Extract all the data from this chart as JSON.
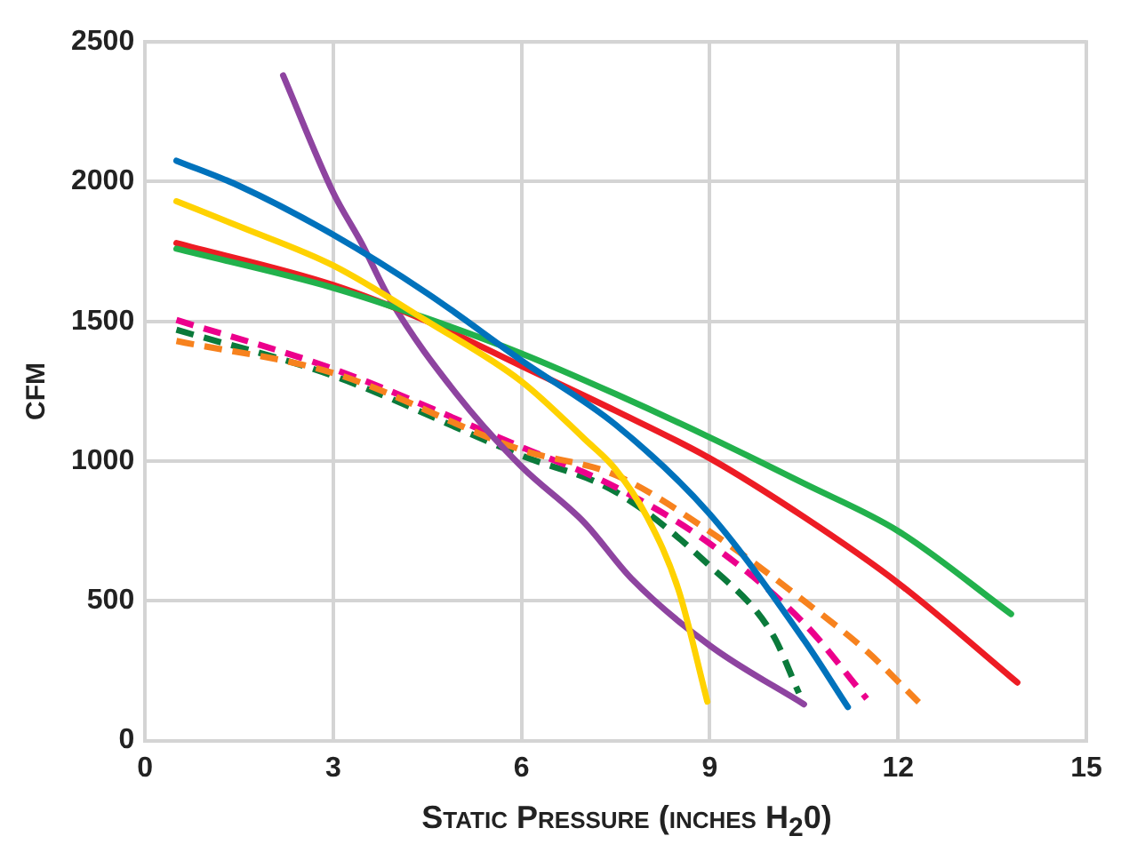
{
  "chart_data": {
    "type": "line",
    "xlabel": "Static Pressure (inches H$_{2}$0)",
    "ylabel": "CFM",
    "xlim": [
      0,
      15
    ],
    "xticks": [
      0,
      3,
      6,
      9,
      12,
      15
    ],
    "ylim": [
      0,
      2500
    ],
    "yticks": [
      0,
      500,
      1000,
      1500,
      2000,
      2500
    ],
    "grid": true,
    "marker": "none",
    "series": [
      {
        "color": "#0072bc",
        "line_style": "solid",
        "x": [
          0.5,
          1.5,
          3,
          4.5,
          6,
          7.5,
          9,
          10.5,
          11.2
        ],
        "values": [
          2075,
          1985,
          1810,
          1600,
          1360,
          1130,
          810,
          360,
          120
        ]
      },
      {
        "color": "#ffd200",
        "line_style": "solid",
        "x": [
          0.5,
          1.5,
          3,
          4.5,
          6,
          7,
          7.5,
          8,
          8.5,
          8.96
        ],
        "values": [
          1930,
          1840,
          1700,
          1500,
          1285,
          1080,
          970,
          800,
          540,
          140
        ]
      },
      {
        "color": "#22b14c",
        "line_style": "solid",
        "x": [
          0.5,
          3,
          4.5,
          6,
          7.5,
          9,
          10.5,
          12,
          13.8
        ],
        "values": [
          1760,
          1620,
          1510,
          1385,
          1240,
          1085,
          920,
          750,
          453
        ]
      },
      {
        "color": "#ed1c24",
        "line_style": "solid",
        "x": [
          0.5,
          3,
          4.5,
          6,
          7.5,
          9,
          10.5,
          12,
          13.9
        ],
        "values": [
          1780,
          1630,
          1500,
          1340,
          1180,
          1010,
          800,
          564,
          208
        ]
      },
      {
        "color": "#8e44a0",
        "line_style": "solid",
        "x": [
          2.2,
          3,
          3.45,
          3.9,
          5,
          6,
          7,
          7.75,
          9,
          10.5
        ],
        "values": [
          2380,
          1960,
          1780,
          1580,
          1230,
          980,
          780,
          580,
          340,
          130
        ]
      },
      {
        "color": "#f7821e",
        "line_style": "dashed",
        "x": [
          0.5,
          3,
          6,
          7.5,
          9,
          10.5,
          11.5,
          12.33
        ],
        "values": [
          1430,
          1315,
          1040,
          950,
          748,
          500,
          320,
          137
        ]
      },
      {
        "color": "#ec008c",
        "line_style": "dashed",
        "x": [
          0.5,
          3,
          6,
          7.5,
          9,
          10.5,
          11.5
        ],
        "values": [
          1505,
          1330,
          1050,
          907,
          705,
          420,
          150
        ]
      },
      {
        "color": "#0b7a3b",
        "line_style": "dashed",
        "x": [
          0.5,
          3,
          6,
          7.5,
          9,
          10,
          10.42
        ],
        "values": [
          1470,
          1305,
          1020,
          890,
          625,
          380,
          170
        ]
      }
    ]
  }
}
